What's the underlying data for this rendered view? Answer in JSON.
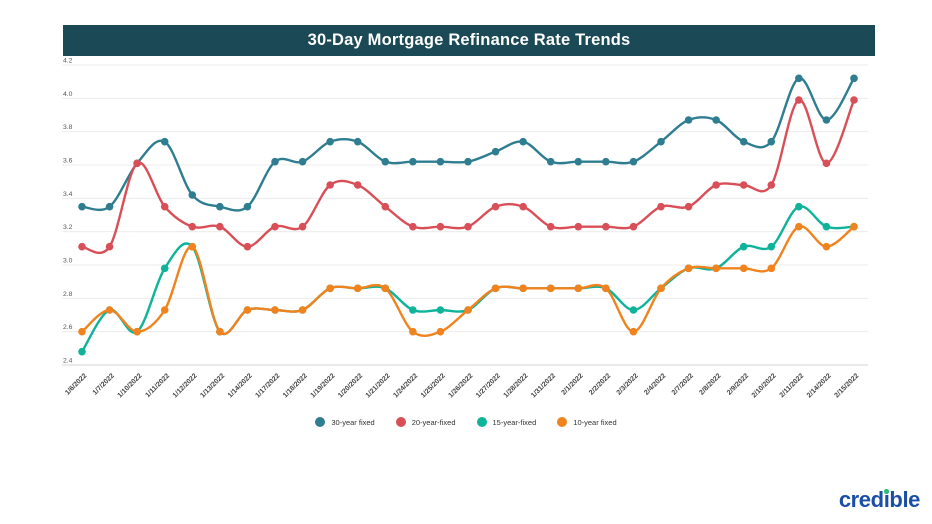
{
  "header": {
    "title": "30-Day Mortgage Refinance Rate Trends",
    "bg_color": "#1c4956",
    "text_color": "#ffffff"
  },
  "chart_data": {
    "type": "line",
    "title": "30-Day Mortgage Refinance Rate Trends",
    "x": [
      "1/6/2022",
      "1/7/2022",
      "1/10/2022",
      "1/11/2022",
      "1/12/2022",
      "1/13/2022",
      "1/14/2022",
      "1/17/2022",
      "1/18/2022",
      "1/19/2022",
      "1/20/2022",
      "1/21/2022",
      "1/24/2022",
      "1/25/2022",
      "1/26/2022",
      "1/27/2022",
      "1/28/2022",
      "1/31/2022",
      "2/1/2022",
      "2/2/2022",
      "2/3/2022",
      "2/4/2022",
      "2/7/2022",
      "2/8/2022",
      "2/9/2022",
      "2/10/2022",
      "2/11/2022",
      "2/14/2022",
      "2/15/2022"
    ],
    "y_ticks": [
      2.4,
      2.6,
      2.8,
      3.0,
      3.2,
      3.4,
      3.6,
      3.8,
      4.0,
      4.2
    ],
    "ylim": [
      2.4,
      4.2
    ],
    "grid": true,
    "legend_position": "bottom",
    "series": [
      {
        "name": "30-year fixed",
        "color": "#2e7d91",
        "values": [
          3.35,
          3.35,
          3.61,
          3.74,
          3.42,
          3.35,
          3.35,
          3.62,
          3.62,
          3.74,
          3.74,
          3.62,
          3.62,
          3.62,
          3.62,
          3.68,
          3.74,
          3.62,
          3.62,
          3.62,
          3.62,
          3.74,
          3.87,
          3.87,
          3.74,
          3.74,
          4.12,
          3.87,
          4.12
        ]
      },
      {
        "name": "20-year-fixed",
        "color": "#d94f57",
        "values": [
          3.11,
          3.11,
          3.61,
          3.35,
          3.23,
          3.23,
          3.11,
          3.23,
          3.23,
          3.48,
          3.48,
          3.35,
          3.23,
          3.23,
          3.23,
          3.35,
          3.35,
          3.23,
          3.23,
          3.23,
          3.23,
          3.35,
          3.35,
          3.48,
          3.48,
          3.48,
          3.99,
          3.61,
          3.99
        ]
      },
      {
        "name": "15-year-fixed",
        "color": "#0fb39a",
        "values": [
          2.48,
          2.73,
          2.6,
          2.98,
          3.11,
          2.6,
          2.73,
          2.73,
          2.73,
          2.86,
          2.86,
          2.86,
          2.73,
          2.73,
          2.73,
          2.86,
          2.86,
          2.86,
          2.86,
          2.86,
          2.73,
          2.86,
          2.98,
          2.98,
          3.11,
          3.11,
          3.35,
          3.23,
          3.23
        ]
      },
      {
        "name": "10-year fixed",
        "color": "#f0831e",
        "values": [
          2.6,
          2.73,
          2.6,
          2.73,
          3.11,
          2.6,
          2.73,
          2.73,
          2.73,
          2.86,
          2.86,
          2.86,
          2.6,
          2.6,
          2.73,
          2.86,
          2.86,
          2.86,
          2.86,
          2.86,
          2.6,
          2.86,
          2.98,
          2.98,
          2.98,
          2.98,
          3.23,
          3.11,
          3.23
        ]
      }
    ]
  },
  "logo": {
    "part1": "cred",
    "i_glyph": "ı",
    "part2": "ble",
    "text_color": "#1b4fa5",
    "dot_color": "#2eb97d"
  }
}
